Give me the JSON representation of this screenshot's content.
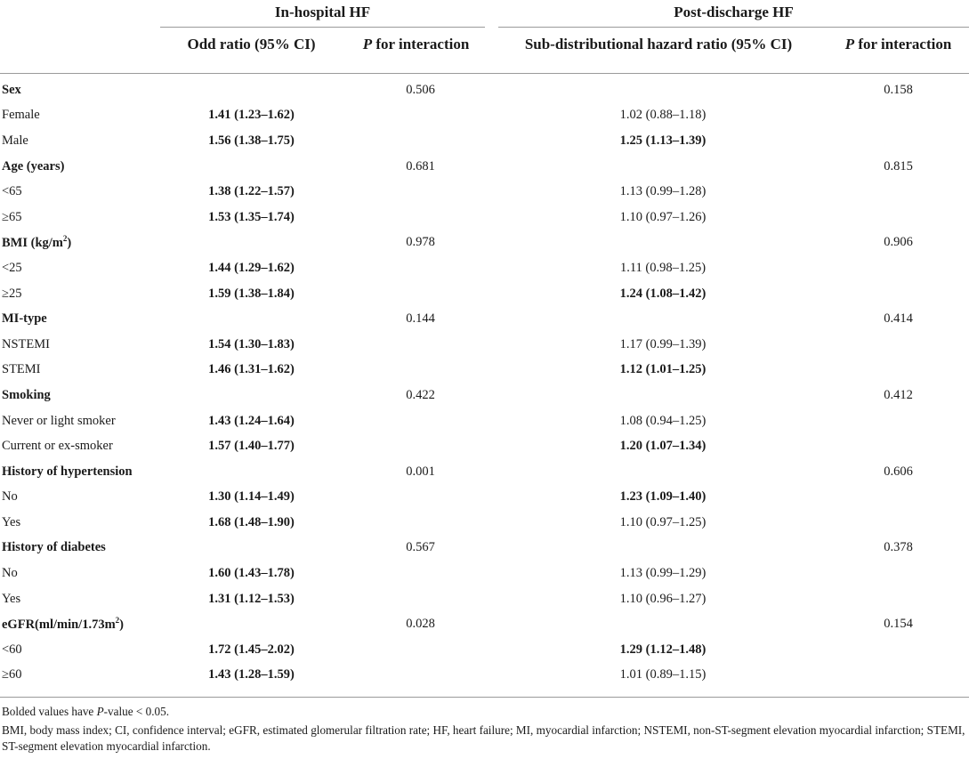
{
  "groups": {
    "inhospital": "In-hospital HF",
    "postdischarge": "Post-discharge HF"
  },
  "columns": {
    "or": "Odd ratio (95% CI)",
    "p1_italic": "P",
    "p1_rest": " for interaction",
    "shr": "Sub-distributional hazard ratio (95% CI)",
    "p2_italic": "P",
    "p2_rest": " for interaction"
  },
  "rows": [
    {
      "label": "Sex",
      "header": true,
      "p1": "0.506",
      "p2": "0.158"
    },
    {
      "label": "Female",
      "or": "1.41 (1.23–1.62)",
      "or_bold": true,
      "shr": "1.02 (0.88–1.18)",
      "shr_bold": false
    },
    {
      "label": "Male",
      "or": "1.56 (1.38–1.75)",
      "or_bold": true,
      "shr": "1.25 (1.13–1.39)",
      "shr_bold": true
    },
    {
      "label": "Age (years)",
      "header": true,
      "p1": "0.681",
      "p2": "0.815"
    },
    {
      "label": "<65",
      "or": "1.38 (1.22–1.57)",
      "or_bold": true,
      "shr": "1.13 (0.99–1.28)",
      "shr_bold": false
    },
    {
      "label": "≥65",
      "or": "1.53 (1.35–1.74)",
      "or_bold": true,
      "shr": "1.10 (0.97–1.26)",
      "shr_bold": false
    },
    {
      "label": "BMI (kg/m",
      "label_sup": "2",
      "label_after": ")",
      "header": true,
      "p1": "0.978",
      "p2": "0.906"
    },
    {
      "label": "<25",
      "or": "1.44 (1.29–1.62)",
      "or_bold": true,
      "shr": "1.11 (0.98–1.25)",
      "shr_bold": false
    },
    {
      "label": "≥25",
      "or": "1.59 (1.38–1.84)",
      "or_bold": true,
      "shr": "1.24 (1.08–1.42)",
      "shr_bold": true
    },
    {
      "label": "MI-type",
      "header": true,
      "p1": "0.144",
      "p2": "0.414"
    },
    {
      "label": "NSTEMI",
      "or": "1.54 (1.30–1.83)",
      "or_bold": true,
      "shr": "1.17 (0.99–1.39)",
      "shr_bold": false
    },
    {
      "label": "STEMI",
      "or": "1.46 (1.31–1.62)",
      "or_bold": true,
      "shr": "1.12 (1.01–1.25)",
      "shr_bold": true
    },
    {
      "label": "Smoking",
      "header": true,
      "p1": "0.422",
      "p2": "0.412"
    },
    {
      "label": "Never or light smoker",
      "or": "1.43 (1.24–1.64)",
      "or_bold": true,
      "shr": "1.08 (0.94–1.25)",
      "shr_bold": false
    },
    {
      "label": "Current or ex-smoker",
      "or": "1.57 (1.40–1.77)",
      "or_bold": true,
      "shr": "1.20 (1.07–1.34)",
      "shr_bold": true
    },
    {
      "label": "History of hypertension",
      "header": true,
      "p1": "0.001",
      "p2": "0.606"
    },
    {
      "label": "No",
      "or": "1.30 (1.14–1.49)",
      "or_bold": true,
      "shr": "1.23 (1.09–1.40)",
      "shr_bold": true
    },
    {
      "label": "Yes",
      "or": "1.68 (1.48–1.90)",
      "or_bold": true,
      "shr": "1.10 (0.97–1.25)",
      "shr_bold": false
    },
    {
      "label": "History of diabetes",
      "header": true,
      "p1": "0.567",
      "p2": "0.378"
    },
    {
      "label": "No",
      "or": "1.60 (1.43–1.78)",
      "or_bold": true,
      "shr": "1.13 (0.99–1.29)",
      "shr_bold": false
    },
    {
      "label": "Yes",
      "or": "1.31 (1.12–1.53)",
      "or_bold": true,
      "shr": "1.10 (0.96–1.27)",
      "shr_bold": false
    },
    {
      "label": "eGFR(ml/min/1.73m",
      "label_sup": "2",
      "label_after": ")",
      "header": true,
      "p1": "0.028",
      "p2": "0.154"
    },
    {
      "label": "<60",
      "or": "1.72 (1.45–2.02)",
      "or_bold": true,
      "shr": "1.29 (1.12–1.48)",
      "shr_bold": true
    },
    {
      "label": "≥60",
      "or": "1.43 (1.28–1.59)",
      "or_bold": true,
      "shr": "1.01 (0.89–1.15)",
      "shr_bold": false
    }
  ],
  "footnotes": {
    "note1_pre": "Bolded values have ",
    "note1_italic": "P",
    "note1_post": "-value < 0.05.",
    "note2": "BMI, body mass index; CI, confidence interval; eGFR, estimated glomerular filtration rate; HF, heart failure; MI, myocardial infarction; NSTEMI, non-ST-segment elevation myocardial infarction; STEMI, ST-segment elevation myocardial infarction."
  }
}
